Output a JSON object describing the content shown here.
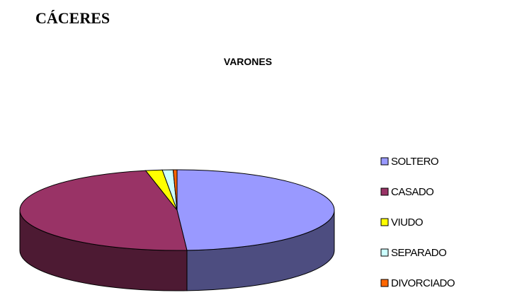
{
  "heading": "CÁCERES",
  "chart_data": {
    "type": "pie3d",
    "title": "VARONES",
    "categories": [
      "SOLTERO",
      "CASADO",
      "VIUDO",
      "SEPARADO",
      "DIVORCIADO"
    ],
    "values": [
      49,
      47.8,
      1.7,
      1.1,
      0.4
    ],
    "colors": [
      "#9999ff",
      "#993366",
      "#ffff00",
      "#ccffff",
      "#ff6600"
    ],
    "legend": "right"
  }
}
